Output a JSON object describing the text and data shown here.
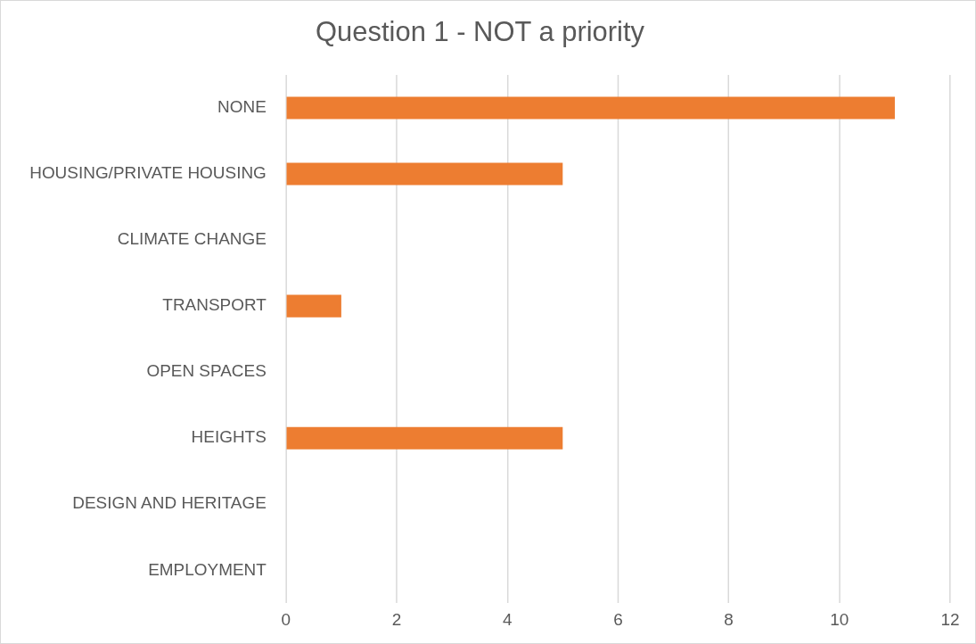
{
  "chart_data": {
    "type": "bar",
    "orientation": "horizontal",
    "title": "Question 1 - NOT a priority",
    "categories": [
      "NONE",
      "HOUSING/PRIVATE HOUSING",
      "CLIMATE CHANGE",
      "TRANSPORT",
      "OPEN SPACES",
      "HEIGHTS",
      "DESIGN AND HERITAGE",
      "EMPLOYMENT"
    ],
    "values": [
      11,
      5,
      0,
      1,
      0,
      5,
      0,
      0
    ],
    "color": "#ed7d31",
    "xlim": [
      0,
      12
    ],
    "xticks": [
      0,
      2,
      4,
      6,
      8,
      10,
      12
    ],
    "grid": "x",
    "legend": false
  }
}
